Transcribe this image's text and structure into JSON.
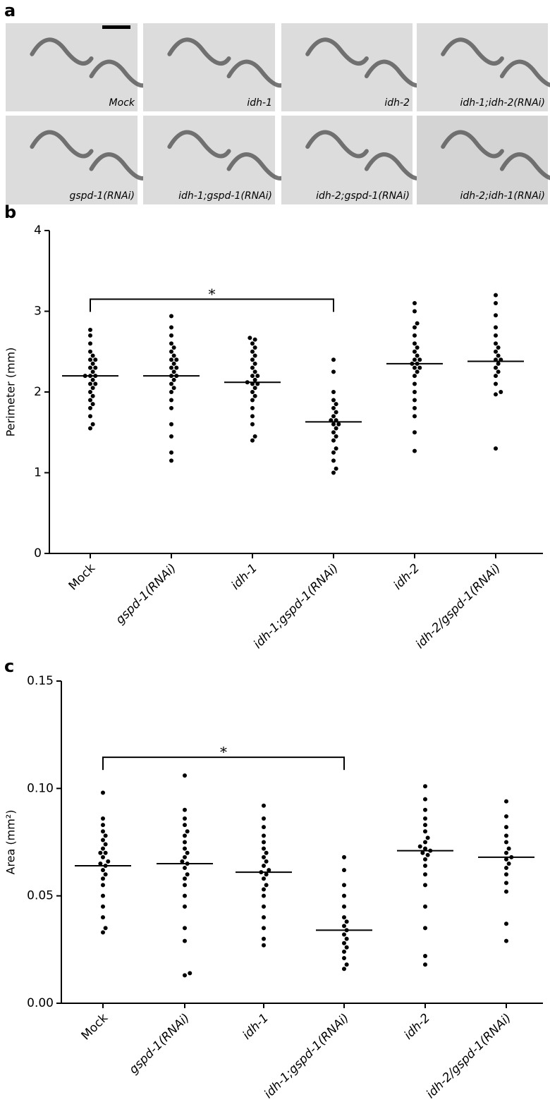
{
  "panel_a": {
    "label": "a",
    "images": [
      "Mock",
      "idh-1",
      "idh-2",
      "idh-1;idh-2(RNAi)",
      "gspd-1(RNAi)",
      "idh-1;gspd-1(RNAi)",
      "idh-2;gspd-1(RNAi)",
      "idh-2;idh-1(RNAi)"
    ]
  },
  "chart_data": [
    {
      "type": "dotplot",
      "panel_label": "b",
      "ylabel": "Perimeter (mm)",
      "categories": [
        "Mock",
        "gspd-1(RNAi)",
        "idh-1",
        "idh-1;gspd-1(RNAi)",
        "idh-2",
        "idh-2/gspd-1(RNAi)"
      ],
      "values": [
        [
          1.55,
          1.6,
          1.7,
          1.8,
          1.85,
          1.9,
          1.95,
          2.0,
          2.05,
          2.1,
          2.1,
          2.15,
          2.2,
          2.2,
          2.2,
          2.25,
          2.3,
          2.3,
          2.35,
          2.4,
          2.4,
          2.45,
          2.5,
          2.6,
          2.7,
          2.77
        ],
        [
          1.15,
          1.25,
          1.45,
          1.6,
          1.8,
          1.9,
          2.0,
          2.05,
          2.1,
          2.15,
          2.2,
          2.2,
          2.25,
          2.3,
          2.3,
          2.35,
          2.4,
          2.4,
          2.45,
          2.5,
          2.55,
          2.6,
          2.7,
          2.8,
          2.94
        ],
        [
          1.4,
          1.45,
          1.6,
          1.7,
          1.8,
          1.9,
          1.95,
          2.0,
          2.05,
          2.1,
          2.1,
          2.12,
          2.15,
          2.2,
          2.2,
          2.25,
          2.3,
          2.35,
          2.4,
          2.45,
          2.5,
          2.55,
          2.6,
          2.65,
          2.67
        ],
        [
          1.0,
          1.05,
          1.15,
          1.25,
          1.3,
          1.4,
          1.45,
          1.5,
          1.55,
          1.6,
          1.6,
          1.65,
          1.65,
          1.7,
          1.75,
          1.8,
          1.85,
          1.9,
          2.0,
          2.25,
          2.4
        ],
        [
          1.27,
          1.5,
          1.7,
          1.8,
          1.9,
          2.0,
          2.1,
          2.2,
          2.25,
          2.3,
          2.3,
          2.35,
          2.35,
          2.4,
          2.4,
          2.45,
          2.5,
          2.55,
          2.6,
          2.7,
          2.8,
          2.85,
          3.0,
          3.1
        ],
        [
          1.3,
          1.97,
          2.0,
          2.1,
          2.2,
          2.25,
          2.3,
          2.35,
          2.4,
          2.4,
          2.45,
          2.5,
          2.55,
          2.6,
          2.7,
          2.8,
          2.95,
          3.1,
          3.2
        ]
      ],
      "means": [
        2.2,
        2.2,
        2.12,
        1.63,
        2.35,
        2.38
      ],
      "color": "#000000",
      "ylim": [
        0,
        4
      ],
      "yticks": [
        0,
        1,
        2,
        3,
        4
      ],
      "annotation": {
        "text": "*",
        "from": 0,
        "to": 3,
        "y": 3.15
      }
    },
    {
      "type": "dotplot",
      "panel_label": "c",
      "ylabel": "Area (mm²)",
      "categories": [
        "Mock",
        "gspd-1(RNAi)",
        "idh-1",
        "idh-1;gspd-1(RNAi)",
        "idh-2",
        "idh-2/gspd-1(RNAi)"
      ],
      "values": [
        [
          0.033,
          0.035,
          0.04,
          0.045,
          0.05,
          0.055,
          0.058,
          0.06,
          0.062,
          0.064,
          0.065,
          0.066,
          0.068,
          0.07,
          0.07,
          0.072,
          0.074,
          0.076,
          0.078,
          0.08,
          0.083,
          0.086,
          0.098
        ],
        [
          0.013,
          0.014,
          0.029,
          0.035,
          0.045,
          0.05,
          0.055,
          0.058,
          0.06,
          0.063,
          0.065,
          0.066,
          0.068,
          0.07,
          0.072,
          0.075,
          0.078,
          0.08,
          0.083,
          0.086,
          0.09,
          0.106
        ],
        [
          0.027,
          0.03,
          0.035,
          0.04,
          0.045,
          0.05,
          0.053,
          0.055,
          0.058,
          0.06,
          0.061,
          0.062,
          0.064,
          0.066,
          0.068,
          0.07,
          0.072,
          0.075,
          0.078,
          0.082,
          0.086,
          0.092
        ],
        [
          0.016,
          0.018,
          0.021,
          0.024,
          0.026,
          0.028,
          0.03,
          0.032,
          0.034,
          0.036,
          0.038,
          0.04,
          0.045,
          0.05,
          0.055,
          0.062,
          0.068
        ],
        [
          0.018,
          0.022,
          0.035,
          0.045,
          0.055,
          0.06,
          0.064,
          0.067,
          0.069,
          0.07,
          0.071,
          0.072,
          0.073,
          0.075,
          0.077,
          0.08,
          0.083,
          0.086,
          0.09,
          0.095,
          0.101
        ],
        [
          0.029,
          0.037,
          0.052,
          0.056,
          0.06,
          0.063,
          0.065,
          0.067,
          0.068,
          0.07,
          0.072,
          0.075,
          0.078,
          0.082,
          0.087,
          0.094
        ]
      ],
      "means": [
        0.064,
        0.065,
        0.061,
        0.034,
        0.071,
        0.068
      ],
      "color": "#000000",
      "ylim": [
        0,
        0.15
      ],
      "yticks": [
        {
          "value": 0,
          "label": "0.00"
        },
        0.05,
        {
          "value": 0.1,
          "label": "0.10"
        },
        0.15
      ],
      "annotation": {
        "text": "*",
        "from": 0,
        "to": 3,
        "y": 0.1145
      }
    }
  ]
}
